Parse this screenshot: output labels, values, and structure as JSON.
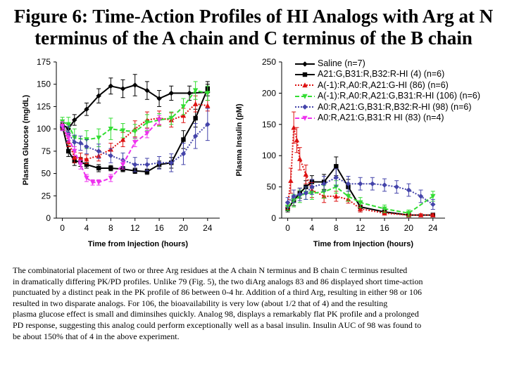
{
  "title": {
    "line1": "Figure 6: Time-Action Profiles of HI Analogs with Arg at N",
    "line2": "terminus of the A chain and C terminus of the B chain"
  },
  "legend": [
    {
      "label": "Saline (n=7)",
      "color": "#000000",
      "dash": "solid",
      "marker": "diamond"
    },
    {
      "label": "A21:G,B31:R,B32:R-HI (4) (n=6)",
      "color": "#000000",
      "dash": "solid",
      "marker": "square"
    },
    {
      "label": "A(-1):R,A0:R,A21:G-HI (86) (n=6)",
      "color": "#dd1111",
      "dash": "dot",
      "marker": "triangle"
    },
    {
      "label": "A(-1):R,A0:R,A21:G,B31:R-HI (106) (n=6)",
      "color": "#33dd33",
      "dash": "dash",
      "marker": "triangle-down"
    },
    {
      "label": "A0:R,A21:G,B31:R,B32:R-HI (98) (n=6)",
      "color": "#4444aa",
      "dash": "dot",
      "marker": "diamond"
    },
    {
      "label": "A0:R,A21:G,B31:R HI (83) (n=4)",
      "color": "#ee33ee",
      "dash": "dash",
      "marker": "triangle-down"
    }
  ],
  "chart_data": [
    {
      "type": "line",
      "title": "",
      "xlabel": "Time from Injection (hours)",
      "ylabel": "Plasma Glucose (mg/dL)",
      "xlim": [
        -1,
        26
      ],
      "ylim": [
        0,
        175
      ],
      "xticks": [
        0,
        4,
        8,
        12,
        16,
        20,
        24
      ],
      "yticks": [
        0,
        25,
        50,
        75,
        100,
        125,
        150,
        175
      ],
      "grid": false,
      "series": [
        {
          "name": "Saline (n=7)",
          "x": [
            0,
            1,
            2,
            4,
            6,
            8,
            10,
            12,
            14,
            16,
            18,
            21,
            24
          ],
          "y": [
            105,
            100,
            110,
            122,
            137,
            148,
            145,
            149,
            143,
            134,
            140,
            140,
            141
          ],
          "err": [
            5,
            5,
            6,
            7,
            8,
            9,
            10,
            12,
            10,
            9,
            8,
            8,
            9
          ]
        },
        {
          "name": "A21:G,B31:R,B32:R-HI (4) (n=6)",
          "x": [
            0,
            1,
            2,
            3,
            4,
            6,
            8,
            10,
            12,
            14,
            16,
            18,
            20,
            22,
            24
          ],
          "y": [
            103,
            75,
            64,
            63,
            60,
            56,
            56,
            55,
            53,
            52,
            60,
            62,
            88,
            112,
            145
          ],
          "err": [
            4,
            6,
            5,
            5,
            4,
            4,
            3,
            3,
            3,
            3,
            4,
            6,
            10,
            10,
            8
          ]
        },
        {
          "name": "A(-1):R,A0:R,A21:G-HI (86) (n=6)",
          "x": [
            0,
            1,
            2,
            3,
            4,
            6,
            8,
            10,
            12,
            14,
            16,
            18,
            20,
            22,
            24
          ],
          "y": [
            105,
            86,
            68,
            67,
            66,
            70,
            77,
            88,
            100,
            110,
            112,
            110,
            115,
            128,
            126
          ],
          "err": [
            5,
            6,
            6,
            6,
            5,
            6,
            7,
            8,
            9,
            9,
            8,
            8,
            8,
            9,
            6
          ]
        },
        {
          "name": "A(-1):R,A0:R,A21:G,B31:R-HI (106) (n=6)",
          "x": [
            0,
            1,
            2,
            4,
            6,
            8,
            10,
            12,
            14,
            16,
            18,
            20,
            22,
            24
          ],
          "y": [
            108,
            105,
            90,
            88,
            90,
            100,
            98,
            97,
            107,
            110,
            112,
            125,
            143,
            140
          ],
          "err": [
            5,
            8,
            10,
            10,
            10,
            12,
            8,
            8,
            9,
            7,
            7,
            9,
            10,
            8
          ]
        },
        {
          "name": "A0:R,A21:G,B31:R,B32:R-HI (98) (n=6)",
          "x": [
            0,
            1,
            2,
            3,
            4,
            6,
            8,
            10,
            12,
            14,
            16,
            18,
            20,
            22,
            24
          ],
          "y": [
            103,
            95,
            85,
            84,
            80,
            75,
            70,
            65,
            60,
            60,
            62,
            62,
            72,
            92,
            105
          ],
          "err": [
            5,
            8,
            8,
            8,
            8,
            8,
            8,
            8,
            8,
            7,
            7,
            10,
            12,
            14,
            18
          ]
        },
        {
          "name": "A0:R,A21:G,B31:R HI (83) (n=4)",
          "x": [
            0,
            1,
            2,
            3,
            4,
            5,
            6,
            8,
            10,
            12,
            14,
            16
          ],
          "y": [
            103,
            90,
            75,
            60,
            45,
            40,
            40,
            45,
            60,
            85,
            95,
            110
          ],
          "err": [
            5,
            5,
            5,
            5,
            4,
            3,
            3,
            4,
            5,
            5,
            5,
            5
          ]
        }
      ]
    },
    {
      "type": "line",
      "title": "",
      "xlabel": "Time from Injection (hours)",
      "ylabel": "Plasma Insulin (pM)",
      "xlim": [
        -1,
        26
      ],
      "ylim": [
        0,
        250
      ],
      "xticks": [
        0,
        4,
        8,
        12,
        16,
        20,
        24
      ],
      "yticks": [
        0,
        50,
        100,
        150,
        200,
        250
      ],
      "grid": false,
      "series": [
        {
          "name": "A21:G,B31:R,B32:R-HI (4) (n=6)",
          "x": [
            0,
            1,
            2,
            3,
            4,
            6,
            8,
            10,
            12,
            16,
            20,
            24
          ],
          "y": [
            15,
            28,
            40,
            50,
            58,
            58,
            83,
            50,
            18,
            10,
            5,
            5
          ],
          "err": [
            5,
            8,
            8,
            10,
            10,
            12,
            15,
            12,
            8,
            5,
            3,
            3
          ]
        },
        {
          "name": "A(-1):R,A0:R,A21:G-HI (86) (n=6)",
          "x": [
            0,
            0.5,
            1,
            1.5,
            2,
            3,
            4,
            6,
            8,
            10,
            12,
            16,
            20,
            22,
            24
          ],
          "y": [
            20,
            60,
            145,
            125,
            95,
            70,
            45,
            35,
            35,
            30,
            15,
            8,
            5,
            5,
            5
          ],
          "err": [
            6,
            20,
            25,
            20,
            18,
            15,
            12,
            10,
            8,
            6,
            5,
            3,
            2,
            2,
            2
          ]
        },
        {
          "name": "A(-1):R,A0:R,A21:G,B31:R-HI (106) (n=6)",
          "x": [
            0,
            1,
            2,
            3,
            4,
            6,
            8,
            10,
            12,
            16,
            20,
            24
          ],
          "y": [
            18,
            28,
            35,
            40,
            40,
            42,
            50,
            35,
            25,
            15,
            8,
            35
          ],
          "err": [
            6,
            10,
            10,
            10,
            10,
            10,
            10,
            8,
            8,
            6,
            5,
            8
          ]
        },
        {
          "name": "A0:R,A21:G,B31:R,B32:R-HI (98) (n=6)",
          "x": [
            0,
            1,
            2,
            3,
            4,
            6,
            8,
            10,
            12,
            14,
            16,
            18,
            20,
            22,
            24
          ],
          "y": [
            25,
            35,
            38,
            40,
            50,
            55,
            65,
            55,
            55,
            55,
            53,
            50,
            45,
            35,
            22
          ],
          "err": [
            8,
            10,
            10,
            10,
            12,
            12,
            14,
            12,
            10,
            10,
            10,
            10,
            10,
            10,
            8
          ]
        }
      ]
    }
  ],
  "caption": [
    "The combinatorial placement of two or three Arg residues at the A chain N terminus and B chain C terminus resulted",
    "in dramatically differing PK/PD profiles. Unlike 79 (Fig. 5), the two diArg analogs 83 and 86 displayed short time-action",
    "punctuated by a distinct peak in the PK profile of 86 between 0-4 hr. Addition of a third Arg, resulting in either 98 or 106",
    "resulted  in two disparate analogs. For 106, the bioavailability is very low (about 1/2 that of 4) and the resulting",
    "plasma glucose effect is small and diminsihes quickly. Analog 98, displays a remarkably flat PK profile and a prolonged",
    "PD response, suggesting this analog could perform exceptionally well as a basal insulin. Insulin AUC of 98 was found to",
    "be about 150% that of 4 in the above experiment."
  ]
}
